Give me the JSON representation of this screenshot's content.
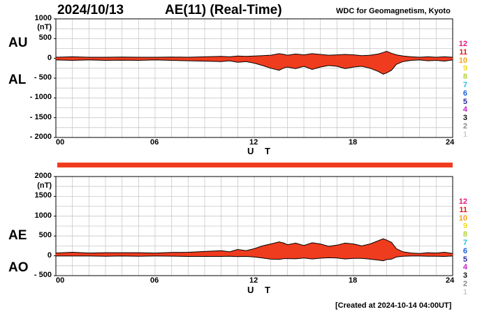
{
  "header": {
    "date": "2024/10/13",
    "title": "AE(11) (Real-Time)",
    "source": "WDC for Geomagnetism, Kyoto"
  },
  "footer": {
    "created": "[Created at 2024-10-14 04:00UT]"
  },
  "legend": [
    {
      "label": "12",
      "color": "#e8177d"
    },
    {
      "label": "11",
      "color": "#e21a1a"
    },
    {
      "label": "10",
      "color": "#f2a21b"
    },
    {
      "label": "9",
      "color": "#f4dd20"
    },
    {
      "label": "8",
      "color": "#b2d235"
    },
    {
      "label": "7",
      "color": "#27c3df"
    },
    {
      "label": "6",
      "color": "#1c5fd6"
    },
    {
      "label": "5",
      "color": "#2a2a9c"
    },
    {
      "label": "4",
      "color": "#c21fc9"
    },
    {
      "label": "3",
      "color": "#111111"
    },
    {
      "label": "2",
      "color": "#888888"
    },
    {
      "label": "1",
      "color": "#cccccc"
    }
  ],
  "chart_data": [
    {
      "type": "area",
      "panel": "AU/AL",
      "series_labels": [
        "AU",
        "AL"
      ],
      "ylabel": "(nT)",
      "xlabel": "U T",
      "ylim": [
        -2000,
        1000
      ],
      "yticks": [
        1000,
        500,
        0,
        -500,
        -1000,
        -1500,
        -2000
      ],
      "ytick_labels": [
        "1000",
        "500",
        "0",
        "- 500",
        "- 1000",
        "- 1500",
        "- 2000"
      ],
      "xlim": [
        0,
        24
      ],
      "xtick_labels": [
        "00",
        "06",
        "12",
        "18",
        "24"
      ],
      "grid": true,
      "fill_color": "#f03c1e",
      "x_hours": [
        0,
        1,
        2,
        3,
        4,
        5,
        6,
        7,
        8,
        9,
        10,
        10.5,
        11,
        11.5,
        12,
        12.5,
        13,
        13.5,
        13.8,
        14,
        14.5,
        15,
        15.5,
        16,
        16.5,
        17,
        17.5,
        18,
        18.5,
        19,
        19.5,
        19.8,
        20,
        20.3,
        20.6,
        21,
        21.5,
        22,
        22.5,
        23,
        23.5,
        24
      ],
      "au": [
        30,
        40,
        30,
        30,
        35,
        30,
        30,
        35,
        30,
        40,
        50,
        40,
        60,
        50,
        60,
        70,
        80,
        120,
        100,
        80,
        110,
        90,
        120,
        100,
        80,
        90,
        100,
        90,
        70,
        80,
        110,
        150,
        180,
        130,
        90,
        60,
        40,
        30,
        40,
        30,
        40,
        30
      ],
      "al": [
        -40,
        -50,
        -40,
        -50,
        -45,
        -50,
        -40,
        -50,
        -60,
        -70,
        -80,
        -60,
        -100,
        -80,
        -120,
        -180,
        -250,
        -300,
        -240,
        -220,
        -260,
        -200,
        -280,
        -220,
        -180,
        -200,
        -260,
        -220,
        -200,
        -250,
        -330,
        -400,
        -370,
        -300,
        -150,
        -80,
        -50,
        -40,
        -60,
        -50,
        -70,
        -40
      ]
    },
    {
      "type": "area",
      "panel": "AE/AO",
      "series_labels": [
        "AE",
        "AO"
      ],
      "ylabel": "(nT)",
      "xlabel": "U T",
      "ylim": [
        -500,
        2000
      ],
      "yticks": [
        2000,
        1500,
        1000,
        500,
        0,
        -500
      ],
      "ytick_labels": [
        "2000",
        "1500",
        "1000",
        "500",
        "0",
        "- 500"
      ],
      "xlim": [
        0,
        24
      ],
      "xtick_labels": [
        "00",
        "06",
        "12",
        "18",
        "24"
      ],
      "grid": true,
      "fill_color": "#f03c1e",
      "x_hours": [
        0,
        1,
        2,
        3,
        4,
        5,
        6,
        7,
        8,
        9,
        10,
        10.5,
        11,
        11.5,
        12,
        12.5,
        13,
        13.5,
        13.8,
        14,
        14.5,
        15,
        15.5,
        16,
        16.5,
        17,
        17.5,
        18,
        18.5,
        19,
        19.5,
        19.8,
        20,
        20.3,
        20.6,
        21,
        21.5,
        22,
        22.5,
        23,
        23.5,
        24
      ],
      "ae": [
        70,
        90,
        70,
        80,
        80,
        80,
        70,
        85,
        90,
        110,
        130,
        100,
        160,
        130,
        180,
        250,
        300,
        350,
        320,
        280,
        320,
        260,
        330,
        300,
        240,
        270,
        320,
        300,
        250,
        300,
        380,
        430,
        400,
        340,
        180,
        100,
        70,
        60,
        80,
        70,
        90,
        60
      ],
      "ao": [
        -5,
        -5,
        -5,
        -10,
        -5,
        -10,
        -5,
        -8,
        -15,
        -15,
        -15,
        -10,
        -20,
        -15,
        -30,
        -55,
        -85,
        -90,
        -70,
        -70,
        -75,
        -55,
        -80,
        -60,
        -50,
        -55,
        -80,
        -65,
        -65,
        -85,
        -110,
        -125,
        -95,
        -85,
        -30,
        -10,
        -5,
        -5,
        -10,
        -10,
        -15,
        -5
      ]
    }
  ]
}
